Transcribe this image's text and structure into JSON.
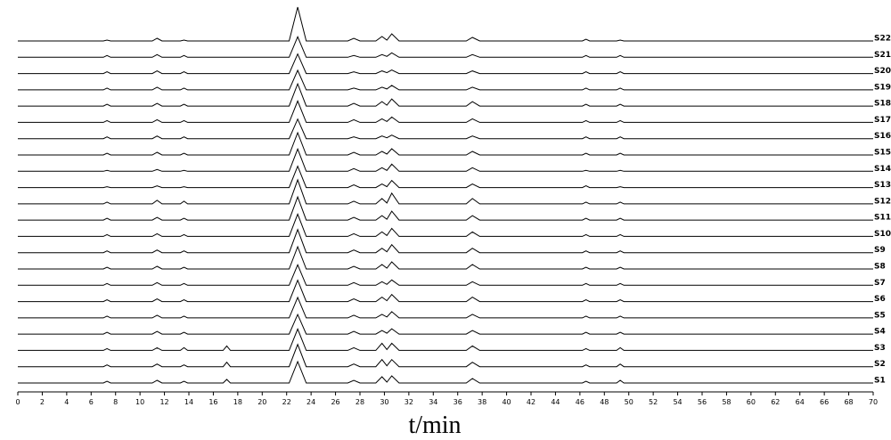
{
  "chart_data": {
    "type": "line",
    "xlabel": "t/min",
    "x": [
      0,
      7,
      7.3,
      7.6,
      11,
      11.4,
      11.8,
      13.3,
      13.6,
      13.9,
      16.8,
      17.1,
      17.4,
      22.2,
      22.9,
      23.6,
      27,
      27.5,
      28,
      29.3,
      29.8,
      30.2,
      30.6,
      31.2,
      36.7,
      37.2,
      37.8,
      46.2,
      46.5,
      46.8,
      49,
      49.3,
      49.6,
      70
    ],
    "xlim": [
      0,
      70
    ],
    "xticks": [
      0,
      2,
      4,
      6,
      8,
      10,
      12,
      14,
      16,
      18,
      20,
      22,
      24,
      26,
      28,
      30,
      32,
      34,
      36,
      38,
      40,
      42,
      44,
      46,
      48,
      50,
      52,
      54,
      56,
      58,
      60,
      62,
      64,
      66,
      68,
      70
    ],
    "color": "#000000",
    "series": [
      {
        "name": "S1",
        "values": [
          0,
          0,
          2,
          0,
          0,
          3,
          0,
          0,
          2,
          0,
          0,
          4,
          0,
          0,
          24,
          0,
          0,
          3,
          0,
          0,
          7,
          1,
          8,
          0,
          0,
          5,
          0,
          0,
          2,
          0,
          0,
          3,
          0,
          0
        ]
      },
      {
        "name": "S2",
        "values": [
          0,
          0,
          2,
          0,
          0,
          3,
          0,
          0,
          2,
          0,
          0,
          5,
          0,
          0,
          25,
          0,
          0,
          3,
          0,
          0,
          8,
          1,
          8,
          0,
          0,
          5,
          0,
          0,
          2,
          0,
          0,
          3,
          0,
          0
        ]
      },
      {
        "name": "S3",
        "values": [
          0,
          0,
          2,
          0,
          0,
          3,
          0,
          0,
          3,
          0,
          0,
          5,
          0,
          0,
          24,
          0,
          0,
          3,
          0,
          0,
          8,
          1,
          8,
          0,
          0,
          5,
          0,
          0,
          2,
          0,
          0,
          3,
          0,
          0
        ]
      },
      {
        "name": "S4",
        "values": [
          0,
          0,
          2,
          0,
          0,
          3,
          0,
          0,
          2,
          0,
          0,
          0,
          0,
          0,
          22,
          0,
          0,
          3,
          0,
          0,
          4,
          1,
          6,
          0,
          0,
          4,
          0,
          0,
          2,
          0,
          0,
          2,
          0,
          0
        ]
      },
      {
        "name": "S5",
        "values": [
          0,
          0,
          2,
          0,
          0,
          3,
          0,
          0,
          2,
          0,
          0,
          0,
          0,
          0,
          23,
          0,
          0,
          3,
          0,
          0,
          4,
          1,
          7,
          0,
          0,
          4,
          0,
          0,
          2,
          0,
          0,
          2,
          0,
          0
        ]
      },
      {
        "name": "S6",
        "values": [
          0,
          0,
          2,
          0,
          0,
          3,
          0,
          0,
          2,
          0,
          0,
          0,
          0,
          0,
          24,
          0,
          0,
          3,
          0,
          0,
          5,
          1,
          8,
          0,
          0,
          5,
          0,
          0,
          2,
          0,
          0,
          2,
          0,
          0
        ]
      },
      {
        "name": "S7",
        "values": [
          0,
          0,
          2,
          0,
          0,
          3,
          0,
          0,
          2,
          0,
          0,
          0,
          0,
          0,
          23,
          0,
          0,
          3,
          0,
          0,
          4,
          1,
          6,
          0,
          0,
          4,
          0,
          0,
          2,
          0,
          0,
          2,
          0,
          0
        ]
      },
      {
        "name": "S8",
        "values": [
          0,
          0,
          2,
          0,
          0,
          3,
          0,
          0,
          2,
          0,
          0,
          0,
          0,
          0,
          25,
          0,
          0,
          3,
          0,
          0,
          5,
          1,
          8,
          0,
          0,
          5,
          0,
          0,
          2,
          0,
          0,
          2,
          0,
          0
        ]
      },
      {
        "name": "S9",
        "values": [
          0,
          0,
          2,
          0,
          0,
          3,
          0,
          0,
          2,
          0,
          0,
          0,
          0,
          0,
          26,
          0,
          0,
          3,
          0,
          0,
          5,
          1,
          9,
          0,
          0,
          5,
          0,
          0,
          2,
          0,
          0,
          2,
          0,
          0
        ]
      },
      {
        "name": "S10",
        "values": [
          0,
          0,
          2,
          0,
          0,
          3,
          0,
          0,
          2,
          0,
          0,
          0,
          0,
          0,
          25,
          0,
          0,
          3,
          0,
          0,
          5,
          1,
          9,
          0,
          0,
          5,
          0,
          0,
          2,
          0,
          0,
          2,
          0,
          0
        ]
      },
      {
        "name": "S11",
        "values": [
          0,
          0,
          2,
          0,
          0,
          3,
          0,
          0,
          2,
          0,
          0,
          0,
          0,
          0,
          26,
          0,
          0,
          3,
          0,
          0,
          5,
          1,
          10,
          0,
          0,
          5,
          0,
          0,
          2,
          0,
          0,
          2,
          0,
          0
        ]
      },
      {
        "name": "S12",
        "values": [
          0,
          0,
          2,
          0,
          0,
          4,
          0,
          0,
          3,
          0,
          0,
          0,
          0,
          0,
          27,
          0,
          0,
          3,
          0,
          0,
          6,
          1,
          12,
          0,
          0,
          6,
          0,
          0,
          2,
          0,
          0,
          2,
          0,
          0
        ]
      },
      {
        "name": "S13",
        "values": [
          0,
          0,
          1,
          0,
          0,
          2,
          0,
          0,
          1,
          0,
          0,
          0,
          0,
          0,
          24,
          0,
          0,
          3,
          0,
          0,
          4,
          1,
          8,
          0,
          0,
          4,
          0,
          0,
          2,
          0,
          0,
          1,
          0,
          0
        ]
      },
      {
        "name": "S14",
        "values": [
          0,
          0,
          1,
          0,
          0,
          2,
          0,
          0,
          1,
          0,
          0,
          0,
          0,
          0,
          25,
          0,
          0,
          3,
          0,
          0,
          4,
          1,
          8,
          0,
          0,
          4,
          0,
          0,
          1,
          0,
          0,
          1,
          0,
          0
        ]
      },
      {
        "name": "S15",
        "values": [
          0,
          0,
          2,
          0,
          0,
          3,
          0,
          0,
          2,
          0,
          0,
          0,
          0,
          0,
          25,
          0,
          0,
          3,
          0,
          0,
          4,
          1,
          7,
          0,
          0,
          4,
          0,
          0,
          2,
          0,
          0,
          2,
          0,
          0
        ]
      },
      {
        "name": "S16",
        "values": [
          0,
          0,
          2,
          0,
          0,
          3,
          0,
          0,
          2,
          0,
          0,
          0,
          0,
          0,
          22,
          0,
          0,
          2,
          0,
          0,
          3,
          1,
          4,
          0,
          0,
          3,
          0,
          0,
          2,
          0,
          0,
          2,
          0,
          0
        ]
      },
      {
        "name": "S17",
        "values": [
          0,
          0,
          2,
          0,
          0,
          3,
          0,
          0,
          2,
          0,
          0,
          0,
          0,
          0,
          24,
          0,
          0,
          3,
          0,
          0,
          4,
          1,
          6,
          0,
          0,
          4,
          0,
          0,
          2,
          0,
          0,
          2,
          0,
          0
        ]
      },
      {
        "name": "S18",
        "values": [
          0,
          0,
          2,
          0,
          0,
          3,
          0,
          0,
          2,
          0,
          0,
          0,
          0,
          0,
          25,
          0,
          0,
          3,
          0,
          0,
          5,
          1,
          8,
          0,
          0,
          5,
          0,
          0,
          2,
          0,
          0,
          2,
          0,
          0
        ]
      },
      {
        "name": "S19",
        "values": [
          0,
          0,
          2,
          0,
          0,
          3,
          0,
          0,
          2,
          0,
          0,
          0,
          0,
          0,
          22,
          0,
          0,
          2,
          0,
          0,
          3,
          1,
          5,
          0,
          0,
          3,
          0,
          0,
          2,
          0,
          0,
          2,
          0,
          0
        ]
      },
      {
        "name": "S20",
        "values": [
          0,
          0,
          2,
          0,
          0,
          3,
          0,
          0,
          2,
          0,
          0,
          0,
          0,
          0,
          22,
          0,
          0,
          2,
          0,
          0,
          3,
          1,
          4,
          0,
          0,
          3,
          0,
          0,
          2,
          0,
          0,
          2,
          0,
          0
        ]
      },
      {
        "name": "S21",
        "values": [
          0,
          0,
          2,
          0,
          0,
          3,
          0,
          0,
          2,
          0,
          0,
          0,
          0,
          0,
          23,
          0,
          0,
          2,
          0,
          0,
          3,
          1,
          5,
          0,
          0,
          3,
          0,
          0,
          2,
          0,
          0,
          2,
          0,
          0
        ]
      },
      {
        "name": "S22",
        "values": [
          0,
          0,
          1,
          0,
          0,
          3,
          0,
          0,
          1,
          0,
          0,
          0,
          0,
          0,
          38,
          0,
          0,
          3,
          0,
          0,
          5,
          1,
          8,
          0,
          0,
          4,
          0,
          0,
          2,
          0,
          0,
          1,
          0,
          0
        ]
      }
    ]
  }
}
